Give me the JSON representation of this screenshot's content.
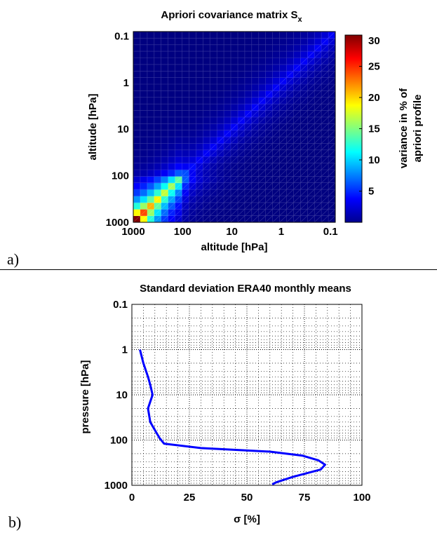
{
  "chart_data": [
    {
      "type": "heatmap",
      "title": "Apriori covariance matrix S",
      "title_subscript": "x",
      "xlabel": "altitude [hPa]",
      "ylabel": "altitude [hPa]",
      "x_ticks": [
        "1000",
        "100",
        "10",
        "1",
        "0.1"
      ],
      "y_ticks": [
        "0.1",
        "1",
        "10",
        "100",
        "1000"
      ],
      "axis_scale": "log",
      "range_hpa": [
        1000,
        0.08
      ],
      "colormap": "jet",
      "colorbar": {
        "range": [
          0,
          30
        ],
        "ticks": [
          "5",
          "10",
          "15",
          "20",
          "25",
          "30"
        ],
        "label_line1": "variance in % of",
        "label_line2": "apriori profile"
      },
      "diagonal_variance_percent": [
        30,
        24,
        21,
        19,
        17,
        16,
        14,
        6,
        4,
        3.5,
        3.5,
        3.5,
        3.5,
        3.5,
        3.5,
        3.5,
        3.5,
        3.5,
        3.5,
        3.5,
        3.5,
        3.5,
        3.5,
        3.5,
        3.5,
        3.5,
        3.5,
        3.5,
        3.5
      ],
      "correlation_decay_per_level": 0.7,
      "panel_label": "a)"
    },
    {
      "type": "line",
      "title": "Standard deviation ERA40 monthly means",
      "xlabel": "σ [%]",
      "ylabel": "pressure [hPa]",
      "xlim": [
        0,
        100
      ],
      "ylim": [
        1000,
        0.1
      ],
      "y_scale": "log",
      "x_ticks": [
        "0",
        "25",
        "50",
        "75",
        "100"
      ],
      "y_ticks": [
        "0.1",
        "1",
        "10",
        "100",
        "1000"
      ],
      "grid": true,
      "line_color": "#0000ff",
      "series": [
        {
          "x": [
            61,
            63,
            70,
            82,
            84,
            81,
            74,
            60,
            30,
            14,
            12,
            10,
            8,
            7,
            9,
            8,
            7,
            5,
            3.5
          ],
          "y": [
            950,
            850,
            650,
            450,
            350,
            280,
            220,
            180,
            150,
            120,
            90,
            60,
            40,
            20,
            10,
            6,
            4,
            2,
            1
          ]
        }
      ],
      "panel_label": "b)"
    }
  ]
}
